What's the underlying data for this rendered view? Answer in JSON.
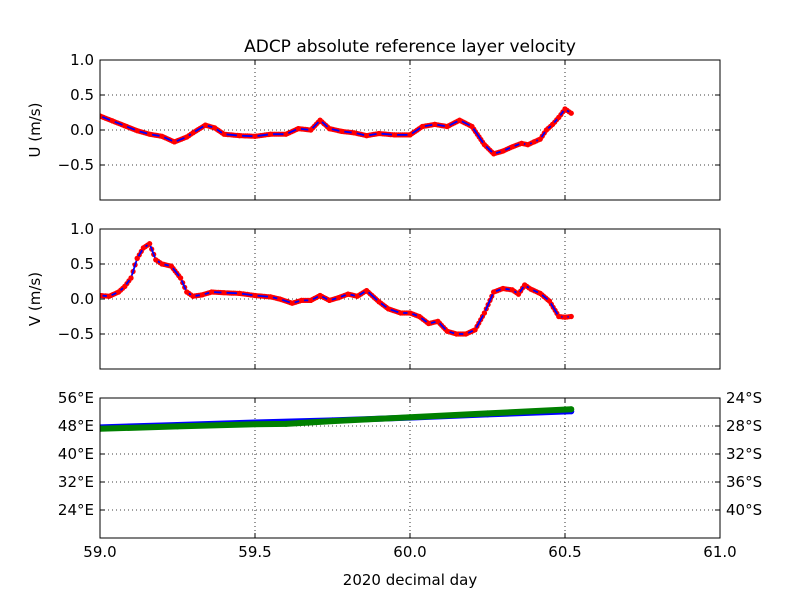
{
  "chart_data": [
    {
      "type": "line",
      "title": "ADCP absolute reference layer velocity",
      "ylabel": "U (m/s)",
      "xlim": [
        59.0,
        61.0
      ],
      "ylim": [
        -1.0,
        1.0
      ],
      "yticks": [
        -0.5,
        0.0,
        0.5,
        1.0
      ],
      "ytick_labels": [
        "−0.5",
        "0.0",
        "0.5",
        "1.0"
      ],
      "xticks": [
        59.0,
        59.5,
        60.0,
        60.5,
        61.0
      ],
      "grid": true,
      "series": [
        {
          "color": "#ff0000",
          "line_color": "#0000ff",
          "x": [
            59.0,
            59.04,
            59.08,
            59.12,
            59.16,
            59.2,
            59.24,
            59.28,
            59.3,
            59.34,
            59.37,
            59.4,
            59.45,
            59.5,
            59.55,
            59.6,
            59.64,
            59.68,
            59.71,
            59.74,
            59.78,
            59.82,
            59.86,
            59.9,
            59.95,
            60.0,
            60.04,
            60.08,
            60.12,
            60.16,
            60.2,
            60.24,
            60.27,
            60.3,
            60.33,
            60.36,
            60.38,
            60.4,
            60.42,
            60.44,
            60.46,
            60.48,
            60.5,
            60.52
          ],
          "y": [
            0.2,
            0.13,
            0.06,
            -0.01,
            -0.06,
            -0.09,
            -0.17,
            -0.1,
            -0.04,
            0.07,
            0.03,
            -0.06,
            -0.08,
            -0.09,
            -0.06,
            -0.06,
            0.02,
            0.0,
            0.14,
            0.02,
            -0.02,
            -0.04,
            -0.08,
            -0.05,
            -0.07,
            -0.07,
            0.05,
            0.08,
            0.05,
            0.14,
            0.05,
            -0.21,
            -0.34,
            -0.3,
            -0.24,
            -0.19,
            -0.21,
            -0.17,
            -0.13,
            0.0,
            0.08,
            0.18,
            0.3,
            0.24
          ]
        }
      ]
    },
    {
      "type": "line",
      "ylabel": "V (m/s)",
      "xlim": [
        59.0,
        61.0
      ],
      "ylim": [
        -1.0,
        1.0
      ],
      "yticks": [
        -0.5,
        0.0,
        0.5,
        1.0
      ],
      "ytick_labels": [
        "−0.5",
        "0.0",
        "0.5",
        "1.0"
      ],
      "xticks": [
        59.0,
        59.5,
        60.0,
        60.5,
        61.0
      ],
      "grid": true,
      "series": [
        {
          "color": "#ff0000",
          "line_color": "#0000ff",
          "x": [
            59.0,
            59.03,
            59.06,
            59.08,
            59.1,
            59.12,
            59.14,
            59.16,
            59.18,
            59.2,
            59.23,
            59.26,
            59.28,
            59.3,
            59.33,
            59.36,
            59.4,
            59.45,
            59.5,
            59.55,
            59.58,
            59.62,
            59.65,
            59.68,
            59.71,
            59.74,
            59.77,
            59.8,
            59.83,
            59.86,
            59.9,
            59.93,
            59.97,
            60.0,
            60.03,
            60.06,
            60.09,
            60.12,
            60.15,
            60.18,
            60.21,
            60.24,
            60.27,
            60.3,
            60.33,
            60.35,
            60.37,
            60.39,
            60.42,
            60.45,
            60.48,
            60.5,
            60.52
          ],
          "y": [
            0.05,
            0.04,
            0.1,
            0.18,
            0.3,
            0.58,
            0.73,
            0.79,
            0.56,
            0.5,
            0.47,
            0.3,
            0.1,
            0.04,
            0.06,
            0.1,
            0.09,
            0.08,
            0.05,
            0.03,
            0.0,
            -0.06,
            -0.02,
            -0.02,
            0.05,
            -0.02,
            0.02,
            0.07,
            0.04,
            0.12,
            -0.04,
            -0.14,
            -0.2,
            -0.2,
            -0.25,
            -0.35,
            -0.32,
            -0.46,
            -0.5,
            -0.5,
            -0.44,
            -0.2,
            0.1,
            0.15,
            0.13,
            0.07,
            0.2,
            0.14,
            0.08,
            -0.03,
            -0.25,
            -0.26,
            -0.25
          ]
        }
      ]
    },
    {
      "type": "scatter",
      "xlabel": "2020 decimal day",
      "xlim": [
        59.0,
        61.0
      ],
      "xticks": [
        59.0,
        59.5,
        60.0,
        60.5,
        61.0
      ],
      "xtick_labels": [
        "59.0",
        "59.5",
        "60.0",
        "60.5",
        "61.0"
      ],
      "ylim": [
        16,
        56
      ],
      "yticks": [
        24,
        32,
        40,
        48,
        56
      ],
      "ytick_labels": [
        "24°E",
        "32°E",
        "40°E",
        "48°E",
        "56°E"
      ],
      "ylim_right": [
        -44,
        -24
      ],
      "yticks_right": [
        -40,
        -36,
        -32,
        -28,
        -24
      ],
      "ytick_labels_right": [
        "40°S",
        "36°S",
        "32°S",
        "28°S",
        "24°S"
      ],
      "grid": true,
      "series": [
        {
          "color": "#0000ff",
          "axis": "left",
          "x": [
            59.0,
            59.25,
            59.5,
            59.75,
            60.0,
            60.25,
            60.52
          ],
          "y": [
            47.6,
            48.3,
            49.0,
            49.6,
            50.4,
            51.3,
            52.2
          ]
        },
        {
          "color": "#008000",
          "axis": "right",
          "x": [
            59.0,
            59.25,
            59.5,
            59.6,
            59.75,
            60.0,
            60.25,
            60.52
          ],
          "y": [
            -28.4,
            -28.05,
            -27.75,
            -27.7,
            -27.3,
            -26.75,
            -26.2,
            -25.6
          ]
        }
      ]
    }
  ]
}
